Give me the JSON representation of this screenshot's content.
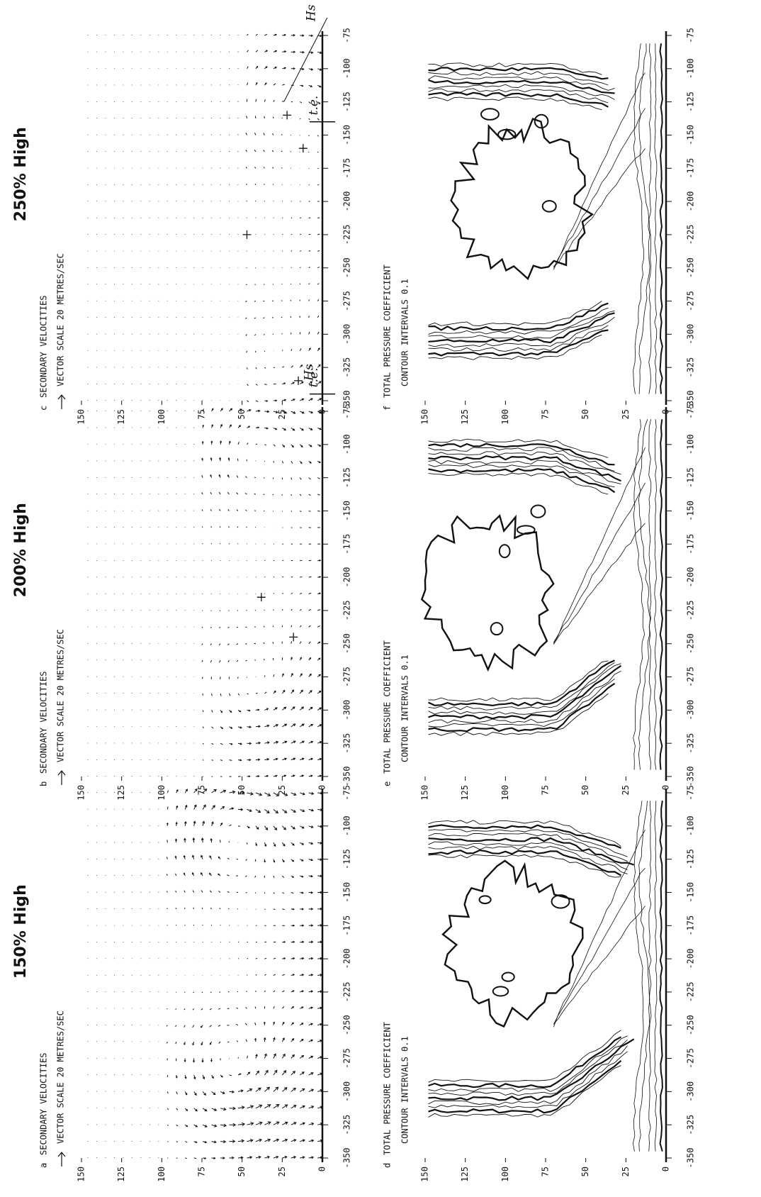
{
  "columns": [
    {
      "heading": "150% High",
      "vector_panel": {
        "letter": "a",
        "title": "SECONDARY VELOCITIES",
        "scale": "VECTOR SCALE 20 METRES/SEC"
      },
      "contour_panel": {
        "letter": "d",
        "title": "TOTAL PRESSURE COEFFICIENT",
        "interval": "CONTOUR INTERVALS 0.1"
      }
    },
    {
      "heading": "200% High",
      "vector_panel": {
        "letter": "b",
        "title": "SECONDARY VELOCITIES",
        "scale": "VECTOR SCALE 20 METRES/SEC"
      },
      "contour_panel": {
        "letter": "e",
        "title": "TOTAL PRESSURE COEFFICIENT",
        "interval": "CONTOUR INTERVALS 0.1"
      }
    },
    {
      "heading": "250% High",
      "vector_panel": {
        "letter": "c",
        "title": "SECONDARY VELOCITIES",
        "scale": "VECTOR SCALE 20 METRES/SEC"
      },
      "contour_panel": {
        "letter": "f",
        "title": "TOTAL PRESSURE COEFFICIENT",
        "interval": "CONTOUR INTERVALS 0.1"
      },
      "annotations": [
        "Hs",
        "Hs",
        "t.e.",
        "t.e."
      ]
    }
  ],
  "axes": {
    "x_ticks": [
      -350,
      -325,
      -300,
      -275,
      -250,
      -225,
      -200,
      -175,
      -150,
      -125,
      -100,
      -75
    ],
    "y_ticks": [
      0,
      25,
      50,
      75,
      100,
      125,
      150
    ]
  }
}
